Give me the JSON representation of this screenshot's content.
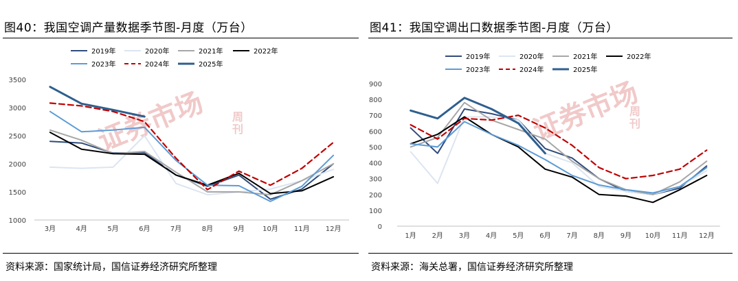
{
  "charts": [
    {
      "figure_title": "图40：我国空调产量数据季节图-月度（万台）",
      "source": "资料来源：国家统计局，国信证券经济研究所整理"
    },
    {
      "figure_title": "图41：我国空调出口数据季节图-月度（万台）",
      "source": "资料来源：海关总署，国信证券经济研究所整理"
    }
  ],
  "watermark": {
    "main": "证券市场",
    "sub": "周刊"
  },
  "chart_data": [
    {
      "type": "line",
      "title": "图40：我国空调产量数据季节图-月度（万台）",
      "xlabel": "",
      "ylabel": "",
      "categories": [
        "3月",
        "4月",
        "5月",
        "6月",
        "7月",
        "8月",
        "9月",
        "10月",
        "11月",
        "12月"
      ],
      "ylim": [
        1000,
        3500
      ],
      "yticks": [
        1000,
        1500,
        2000,
        2500,
        3000,
        3500
      ],
      "grid": false,
      "legend_position": "top",
      "series": [
        {
          "name": "2019年",
          "color": "#2f4b7c",
          "dash": "solid",
          "values": [
            2400,
            2370,
            2190,
            2200,
            1800,
            1600,
            1800,
            1370,
            1550,
            2000
          ]
        },
        {
          "name": "2020年",
          "color": "#dbe5f1",
          "dash": "solid",
          "values": [
            1940,
            1920,
            1940,
            2500,
            1650,
            1450,
            1500,
            1550,
            1700,
            1900
          ]
        },
        {
          "name": "2021年",
          "color": "#a6a6a6",
          "dash": "solid",
          "values": [
            2600,
            2420,
            2180,
            2220,
            1850,
            1500,
            1500,
            1450,
            1700,
            2000
          ]
        },
        {
          "name": "2022年",
          "color": "#000000",
          "dash": "solid",
          "values": [
            2560,
            2260,
            2180,
            2170,
            1800,
            1620,
            1830,
            1470,
            1520,
            1770
          ]
        },
        {
          "name": "2023年",
          "color": "#5b9bd5",
          "dash": "solid",
          "values": [
            2930,
            2570,
            2600,
            2650,
            2060,
            1620,
            1610,
            1330,
            1600,
            2150
          ]
        },
        {
          "name": "2024年",
          "color": "#c00000",
          "dash": "dash",
          "values": [
            3080,
            3030,
            2930,
            2750,
            2100,
            1540,
            1870,
            1620,
            1920,
            2380
          ]
        },
        {
          "name": "2025年",
          "color": "#2e5f8e",
          "dash": "solid",
          "values": [
            3370,
            3070,
            2960,
            2840,
            null,
            null,
            null,
            null,
            null,
            null
          ]
        }
      ]
    },
    {
      "type": "line",
      "title": "图41：我国空调出口数据季节图-月度（万台）",
      "xlabel": "",
      "ylabel": "",
      "categories": [
        "1月",
        "2月",
        "3月",
        "4月",
        "5月",
        "6月",
        "7月",
        "8月",
        "9月",
        "10月",
        "11月",
        "12月"
      ],
      "ylim": [
        0,
        900
      ],
      "yticks": [
        0,
        100,
        200,
        300,
        400,
        500,
        600,
        700,
        800,
        900
      ],
      "grid": false,
      "legend_position": "top",
      "series": [
        {
          "name": "2019年",
          "color": "#2f4b7c",
          "dash": "solid",
          "values": [
            620,
            460,
            740,
            710,
            670,
            490,
            430,
            300,
            220,
            200,
            240,
            380
          ]
        },
        {
          "name": "2020年",
          "color": "#dbe5f1",
          "dash": "solid",
          "values": [
            470,
            270,
            690,
            690,
            670,
            460,
            400,
            250,
            220,
            200,
            250,
            350
          ]
        },
        {
          "name": "2021年",
          "color": "#a6a6a6",
          "dash": "solid",
          "values": [
            500,
            560,
            780,
            670,
            610,
            550,
            410,
            300,
            230,
            200,
            280,
            410
          ]
        },
        {
          "name": "2022年",
          "color": "#000000",
          "dash": "solid",
          "values": [
            520,
            580,
            690,
            580,
            500,
            360,
            310,
            200,
            190,
            150,
            230,
            320
          ]
        },
        {
          "name": "2023年",
          "color": "#5b9bd5",
          "dash": "solid",
          "values": [
            520,
            500,
            660,
            580,
            510,
            420,
            320,
            260,
            230,
            210,
            250,
            370
          ]
        },
        {
          "name": "2024年",
          "color": "#c00000",
          "dash": "dash",
          "values": [
            640,
            550,
            680,
            670,
            700,
            620,
            510,
            370,
            300,
            320,
            360,
            480
          ]
        },
        {
          "name": "2025年",
          "color": "#2e5f8e",
          "dash": "solid",
          "values": [
            730,
            680,
            810,
            740,
            650,
            460,
            null,
            null,
            null,
            null,
            null,
            null
          ]
        }
      ]
    }
  ]
}
